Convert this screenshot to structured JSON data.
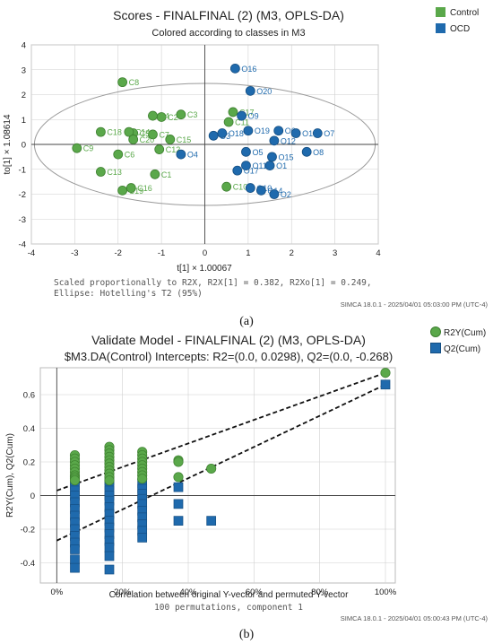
{
  "colors": {
    "control": "#5aa84a",
    "control_stroke": "#3d7f2f",
    "ocd": "#1f6aad",
    "ocd_stroke": "#154f83",
    "r2y": "#5aa84a",
    "q2": "#1f6aad",
    "grid": "#d0d0d0",
    "ellipse": "#9a9a9a",
    "zero_axis": "#444444"
  },
  "panel_a": {
    "title": "Scores - FINALFINAL (2) (M3, OPLS-DA)",
    "subtitle": "Colored according to classes in M3",
    "footnote_1": "Scaled proportionally to R2X, R2X[1] = 0.382, R2Xo[1] = 0.249,",
    "footnote_2": "Ellipse: Hotelling's T2 (95%)",
    "stamp": "SIMCA 18.0.1 - 2025/04/01 05:03:00 PM (UTC-4)",
    "panel_label": "(a)"
  },
  "panel_b": {
    "title": "Validate Model - FINALFINAL (2) (M3, OPLS-DA)",
    "subtitle": "$M3.DA(Control) Intercepts: R2=(0.0, 0.0298), Q2=(0.0, -0.268)",
    "footnote": "100 permutations, component 1",
    "stamp": "SIMCA 18.0.1 - 2025/04/01 05:00:43 PM (UTC-4)",
    "panel_label": "(b)"
  },
  "chart_data": [
    {
      "type": "scatter",
      "title": "Scores - FINALFINAL (2) (M3, OPLS-DA)",
      "subtitle": "Colored according to classes in M3",
      "xlabel": "t[1] × 1.00067",
      "ylabel": "to[1] × 1.08614",
      "xlim": [
        -4,
        4
      ],
      "ylim": [
        -4,
        4
      ],
      "xticks": [
        -4,
        -3,
        -2,
        -1,
        0,
        1,
        2,
        3,
        4
      ],
      "yticks": [
        -4,
        -3,
        -2,
        -1,
        0,
        1,
        2,
        3,
        4
      ],
      "grid": true,
      "legend": "top-right",
      "ellipse": {
        "label": "Hotelling's T2 (95%)",
        "rx": 3.93,
        "ry": 2.45
      },
      "series": [
        {
          "name": "Control",
          "points": [
            {
              "label": "C1",
              "x": -1.15,
              "y": -1.2
            },
            {
              "label": "C2",
              "x": -1.0,
              "y": 1.1
            },
            {
              "label": "C3",
              "x": -0.55,
              "y": 1.2
            },
            {
              "label": "C4",
              "x": -1.2,
              "y": 1.15
            },
            {
              "label": "C5",
              "x": -1.65,
              "y": 0.45
            },
            {
              "label": "C6",
              "x": -2.0,
              "y": -0.4
            },
            {
              "label": "C7",
              "x": -1.2,
              "y": 0.4
            },
            {
              "label": "C8",
              "x": -1.9,
              "y": 2.5
            },
            {
              "label": "C9",
              "x": -2.95,
              "y": -0.15
            },
            {
              "label": "C10",
              "x": 0.5,
              "y": -1.7
            },
            {
              "label": "C11",
              "x": 0.55,
              "y": 0.9
            },
            {
              "label": "C12",
              "x": -1.05,
              "y": -0.2
            },
            {
              "label": "C13",
              "x": -2.4,
              "y": -1.1
            },
            {
              "label": "C14",
              "x": -1.75,
              "y": 0.5
            },
            {
              "label": "C15",
              "x": -0.8,
              "y": 0.2
            },
            {
              "label": "C16",
              "x": -1.7,
              "y": -1.75
            },
            {
              "label": "C17",
              "x": 0.65,
              "y": 1.3
            },
            {
              "label": "C18",
              "x": -2.4,
              "y": 0.5
            },
            {
              "label": "C19",
              "x": -1.9,
              "y": -1.85
            },
            {
              "label": "C20",
              "x": -1.65,
              "y": 0.2
            }
          ]
        },
        {
          "name": "OCD",
          "points": [
            {
              "label": "O1",
              "x": 1.5,
              "y": -0.85
            },
            {
              "label": "O2",
              "x": 1.6,
              "y": -2.0
            },
            {
              "label": "O3",
              "x": 0.2,
              "y": 0.35
            },
            {
              "label": "O4",
              "x": -0.55,
              "y": -0.4
            },
            {
              "label": "O5",
              "x": 0.95,
              "y": -0.3
            },
            {
              "label": "O6",
              "x": 1.7,
              "y": 0.55
            },
            {
              "label": "O7",
              "x": 2.6,
              "y": 0.45
            },
            {
              "label": "O8",
              "x": 2.35,
              "y": -0.3
            },
            {
              "label": "O9",
              "x": 0.85,
              "y": 1.15
            },
            {
              "label": "O10",
              "x": 1.05,
              "y": -1.75
            },
            {
              "label": "O11",
              "x": 0.95,
              "y": -0.85
            },
            {
              "label": "O12",
              "x": 1.6,
              "y": 0.15
            },
            {
              "label": "O13",
              "x": 2.1,
              "y": 0.45
            },
            {
              "label": "O14",
              "x": 1.3,
              "y": -1.85
            },
            {
              "label": "O15",
              "x": 1.55,
              "y": -0.5
            },
            {
              "label": "O16",
              "x": 0.7,
              "y": 3.05
            },
            {
              "label": "O17",
              "x": 0.75,
              "y": -1.05
            },
            {
              "label": "O18",
              "x": 0.4,
              "y": 0.45
            },
            {
              "label": "O19",
              "x": 1.0,
              "y": 0.55
            },
            {
              "label": "O20",
              "x": 1.05,
              "y": 2.15
            }
          ]
        }
      ]
    },
    {
      "type": "scatter",
      "title": "Validate Model - FINALFINAL (2) (M3, OPLS-DA)",
      "subtitle": "$M3.DA(Control) Intercepts: R2=(0.0, 0.0298), Q2=(0.0, -0.268)",
      "xlabel": "Correlation between original Y-vector and permuted Y-vector",
      "ylabel": "R2Y(Cum), Q2(Cum)",
      "xlim": [
        -0.05,
        1.03
      ],
      "ylim": [
        -0.52,
        0.76
      ],
      "xticks": [
        "0%",
        "20%",
        "40%",
        "60%",
        "80%",
        "100%"
      ],
      "yticks": [
        -0.4,
        -0.2,
        0,
        0.2,
        0.4,
        0.6
      ],
      "grid": true,
      "legend": "top-right",
      "series": [
        {
          "name": "R2Y(Cum)",
          "x": [
            0.055,
            0.055,
            0.055,
            0.055,
            0.055,
            0.055,
            0.055,
            0.055,
            0.055,
            0.055,
            0.16,
            0.16,
            0.16,
            0.16,
            0.16,
            0.16,
            0.16,
            0.16,
            0.16,
            0.16,
            0.16,
            0.26,
            0.26,
            0.26,
            0.26,
            0.26,
            0.26,
            0.26,
            0.26,
            0.26,
            0.37,
            0.37,
            0.37,
            0.47,
            1.0
          ],
          "y": [
            0.24,
            0.22,
            0.2,
            0.18,
            0.16,
            0.14,
            0.12,
            0.11,
            0.1,
            0.09,
            0.29,
            0.27,
            0.25,
            0.23,
            0.21,
            0.19,
            0.17,
            0.15,
            0.13,
            0.11,
            0.09,
            0.26,
            0.24,
            0.22,
            0.2,
            0.18,
            0.16,
            0.14,
            0.12,
            0.1,
            0.21,
            0.2,
            0.11,
            0.16,
            0.73
          ]
        },
        {
          "name": "Q2(Cum)",
          "x": [
            0.055,
            0.055,
            0.055,
            0.055,
            0.055,
            0.055,
            0.055,
            0.055,
            0.055,
            0.055,
            0.055,
            0.055,
            0.055,
            0.055,
            0.16,
            0.16,
            0.16,
            0.16,
            0.16,
            0.16,
            0.16,
            0.16,
            0.16,
            0.16,
            0.16,
            0.16,
            0.16,
            0.16,
            0.26,
            0.26,
            0.26,
            0.26,
            0.26,
            0.26,
            0.26,
            0.26,
            0.26,
            0.26,
            0.37,
            0.37,
            0.37,
            0.47,
            1.0
          ],
          "y": [
            0.09,
            0.06,
            0.03,
            0.0,
            -0.04,
            -0.08,
            -0.12,
            -0.16,
            -0.2,
            -0.24,
            -0.28,
            -0.32,
            -0.38,
            -0.43,
            0.09,
            0.06,
            0.03,
            0.0,
            -0.03,
            -0.07,
            -0.11,
            -0.15,
            -0.19,
            -0.23,
            -0.27,
            -0.31,
            -0.36,
            -0.44,
            0.07,
            0.04,
            0.01,
            -0.02,
            -0.05,
            -0.09,
            -0.13,
            -0.17,
            -0.21,
            -0.25,
            0.05,
            -0.05,
            -0.15,
            -0.15,
            0.66
          ]
        }
      ],
      "regression_lines": [
        {
          "series": "R2Y(Cum)",
          "x": [
            0,
            1.0
          ],
          "y": [
            0.0298,
            0.73
          ]
        },
        {
          "series": "Q2(Cum)",
          "x": [
            0,
            1.0
          ],
          "y": [
            -0.268,
            0.66
          ]
        }
      ]
    }
  ]
}
